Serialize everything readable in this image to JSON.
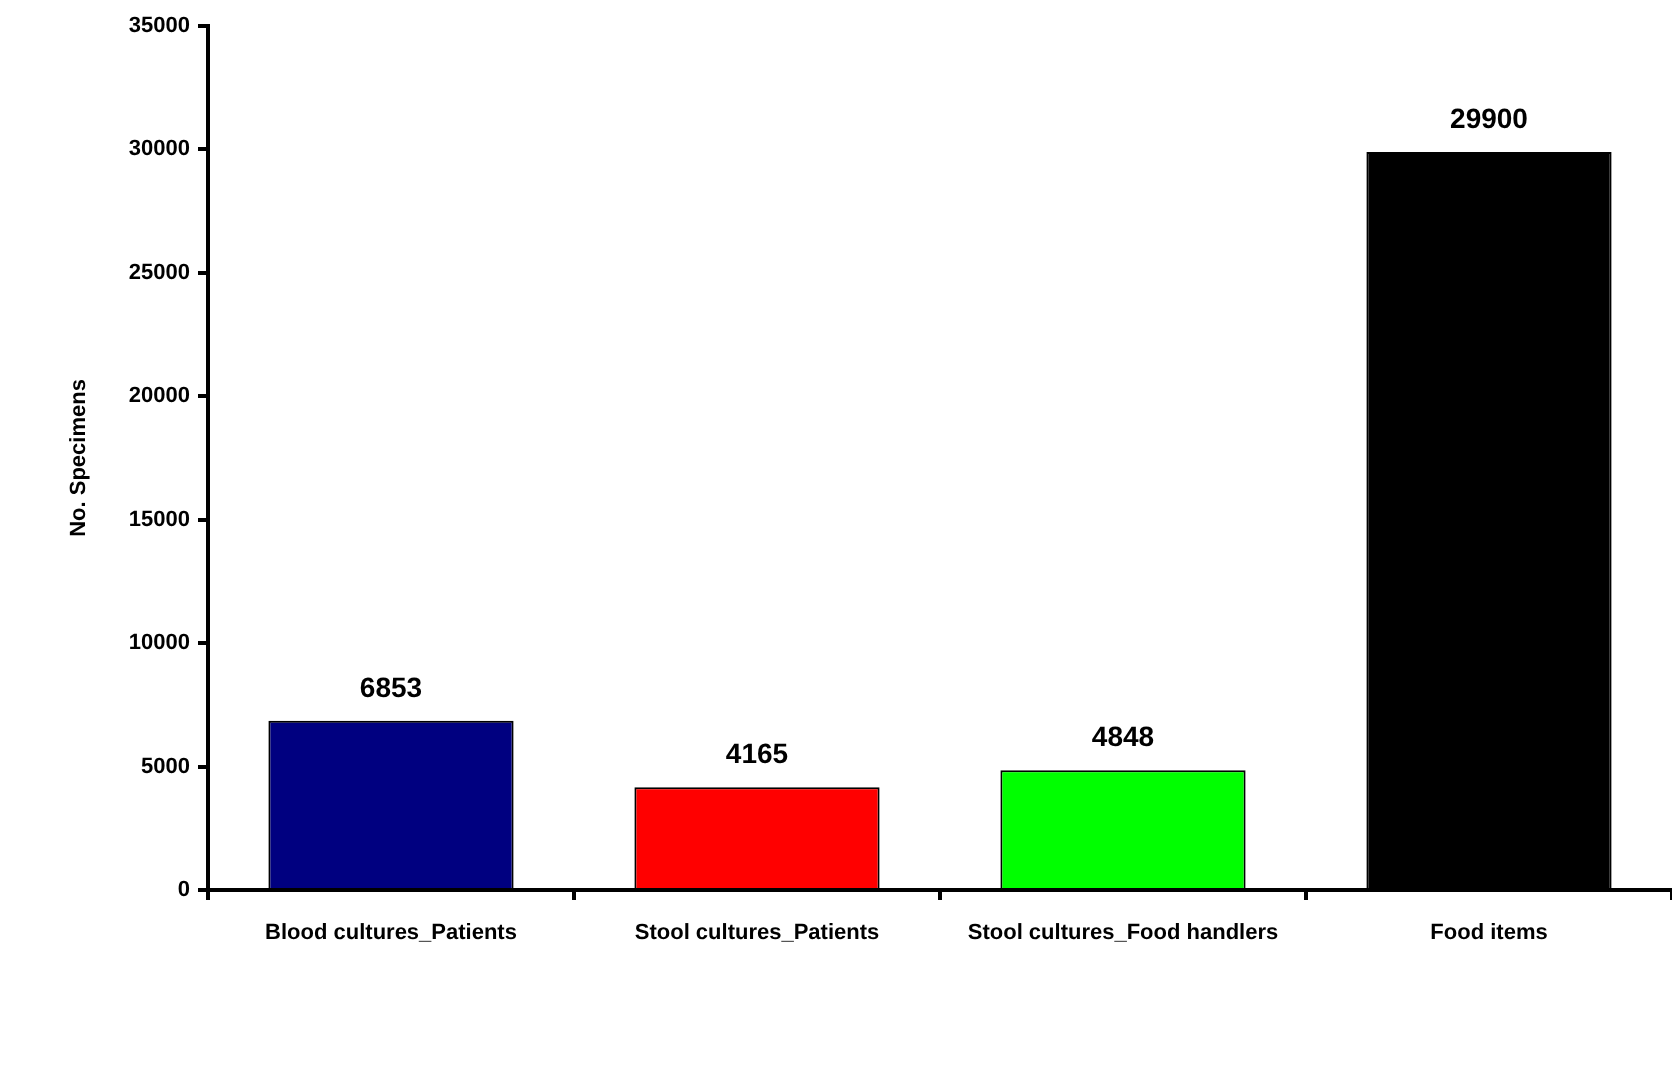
{
  "chart_data": {
    "type": "bar",
    "ylabel": "No. Specimens",
    "categories": [
      "Blood cultures_Patients",
      "Stool cultures_Patients",
      "Stool cultures_Food handlers",
      "Food items"
    ],
    "values": [
      6853,
      4165,
      4848,
      29900
    ],
    "colors": [
      "#000080",
      "#ff0000",
      "#00ff00",
      "#000000"
    ],
    "ylim": [
      0,
      35000
    ],
    "yticks": [
      0,
      5000,
      10000,
      15000,
      20000,
      25000,
      30000,
      35000
    ],
    "grid": false,
    "legend": false,
    "data_labels": true
  }
}
